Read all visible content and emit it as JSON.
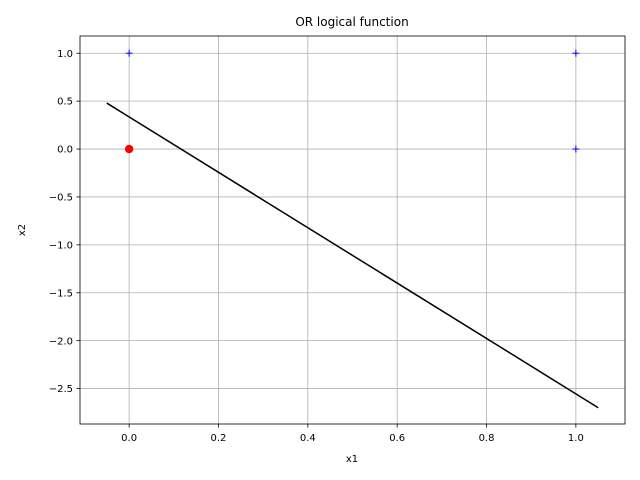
{
  "chart_data": {
    "type": "scatter",
    "title": "OR logical function",
    "xlabel": "x1",
    "ylabel": "x2",
    "xlim": [
      -0.11,
      1.11
    ],
    "ylim": [
      -2.87,
      1.18
    ],
    "grid": true,
    "x_ticks": [
      {
        "value": 0.0,
        "label": "0.0"
      },
      {
        "value": 0.2,
        "label": "0.2"
      },
      {
        "value": 0.4,
        "label": "0.4"
      },
      {
        "value": 0.6,
        "label": "0.6"
      },
      {
        "value": 0.8,
        "label": "0.8"
      },
      {
        "value": 1.0,
        "label": "1.0"
      }
    ],
    "y_ticks": [
      {
        "value": 1.0,
        "label": "1.0"
      },
      {
        "value": 0.5,
        "label": "0.5"
      },
      {
        "value": 0.0,
        "label": "0.0"
      },
      {
        "value": -0.5,
        "label": "−0.5"
      },
      {
        "value": -1.0,
        "label": "−1.0"
      },
      {
        "value": -1.5,
        "label": "−1.5"
      },
      {
        "value": -2.0,
        "label": "−2.0"
      },
      {
        "value": -2.5,
        "label": "−2.5"
      }
    ],
    "series": [
      {
        "marker": "plus",
        "color": "#0000ff",
        "points": [
          {
            "x": 0,
            "y": 1
          },
          {
            "x": 1,
            "y": 1
          },
          {
            "x": 1,
            "y": 0
          }
        ]
      },
      {
        "marker": "circle",
        "color": "#ff0000",
        "points": [
          {
            "x": 0,
            "y": 0
          }
        ]
      },
      {
        "marker": "line",
        "color": "#000000",
        "points": [
          {
            "x": -0.05,
            "y": 0.48
          },
          {
            "x": 1.05,
            "y": -2.7
          }
        ]
      }
    ],
    "colors": {
      "grid": "#b0b0b0",
      "axes": "#000000",
      "background": "#ffffff"
    }
  }
}
